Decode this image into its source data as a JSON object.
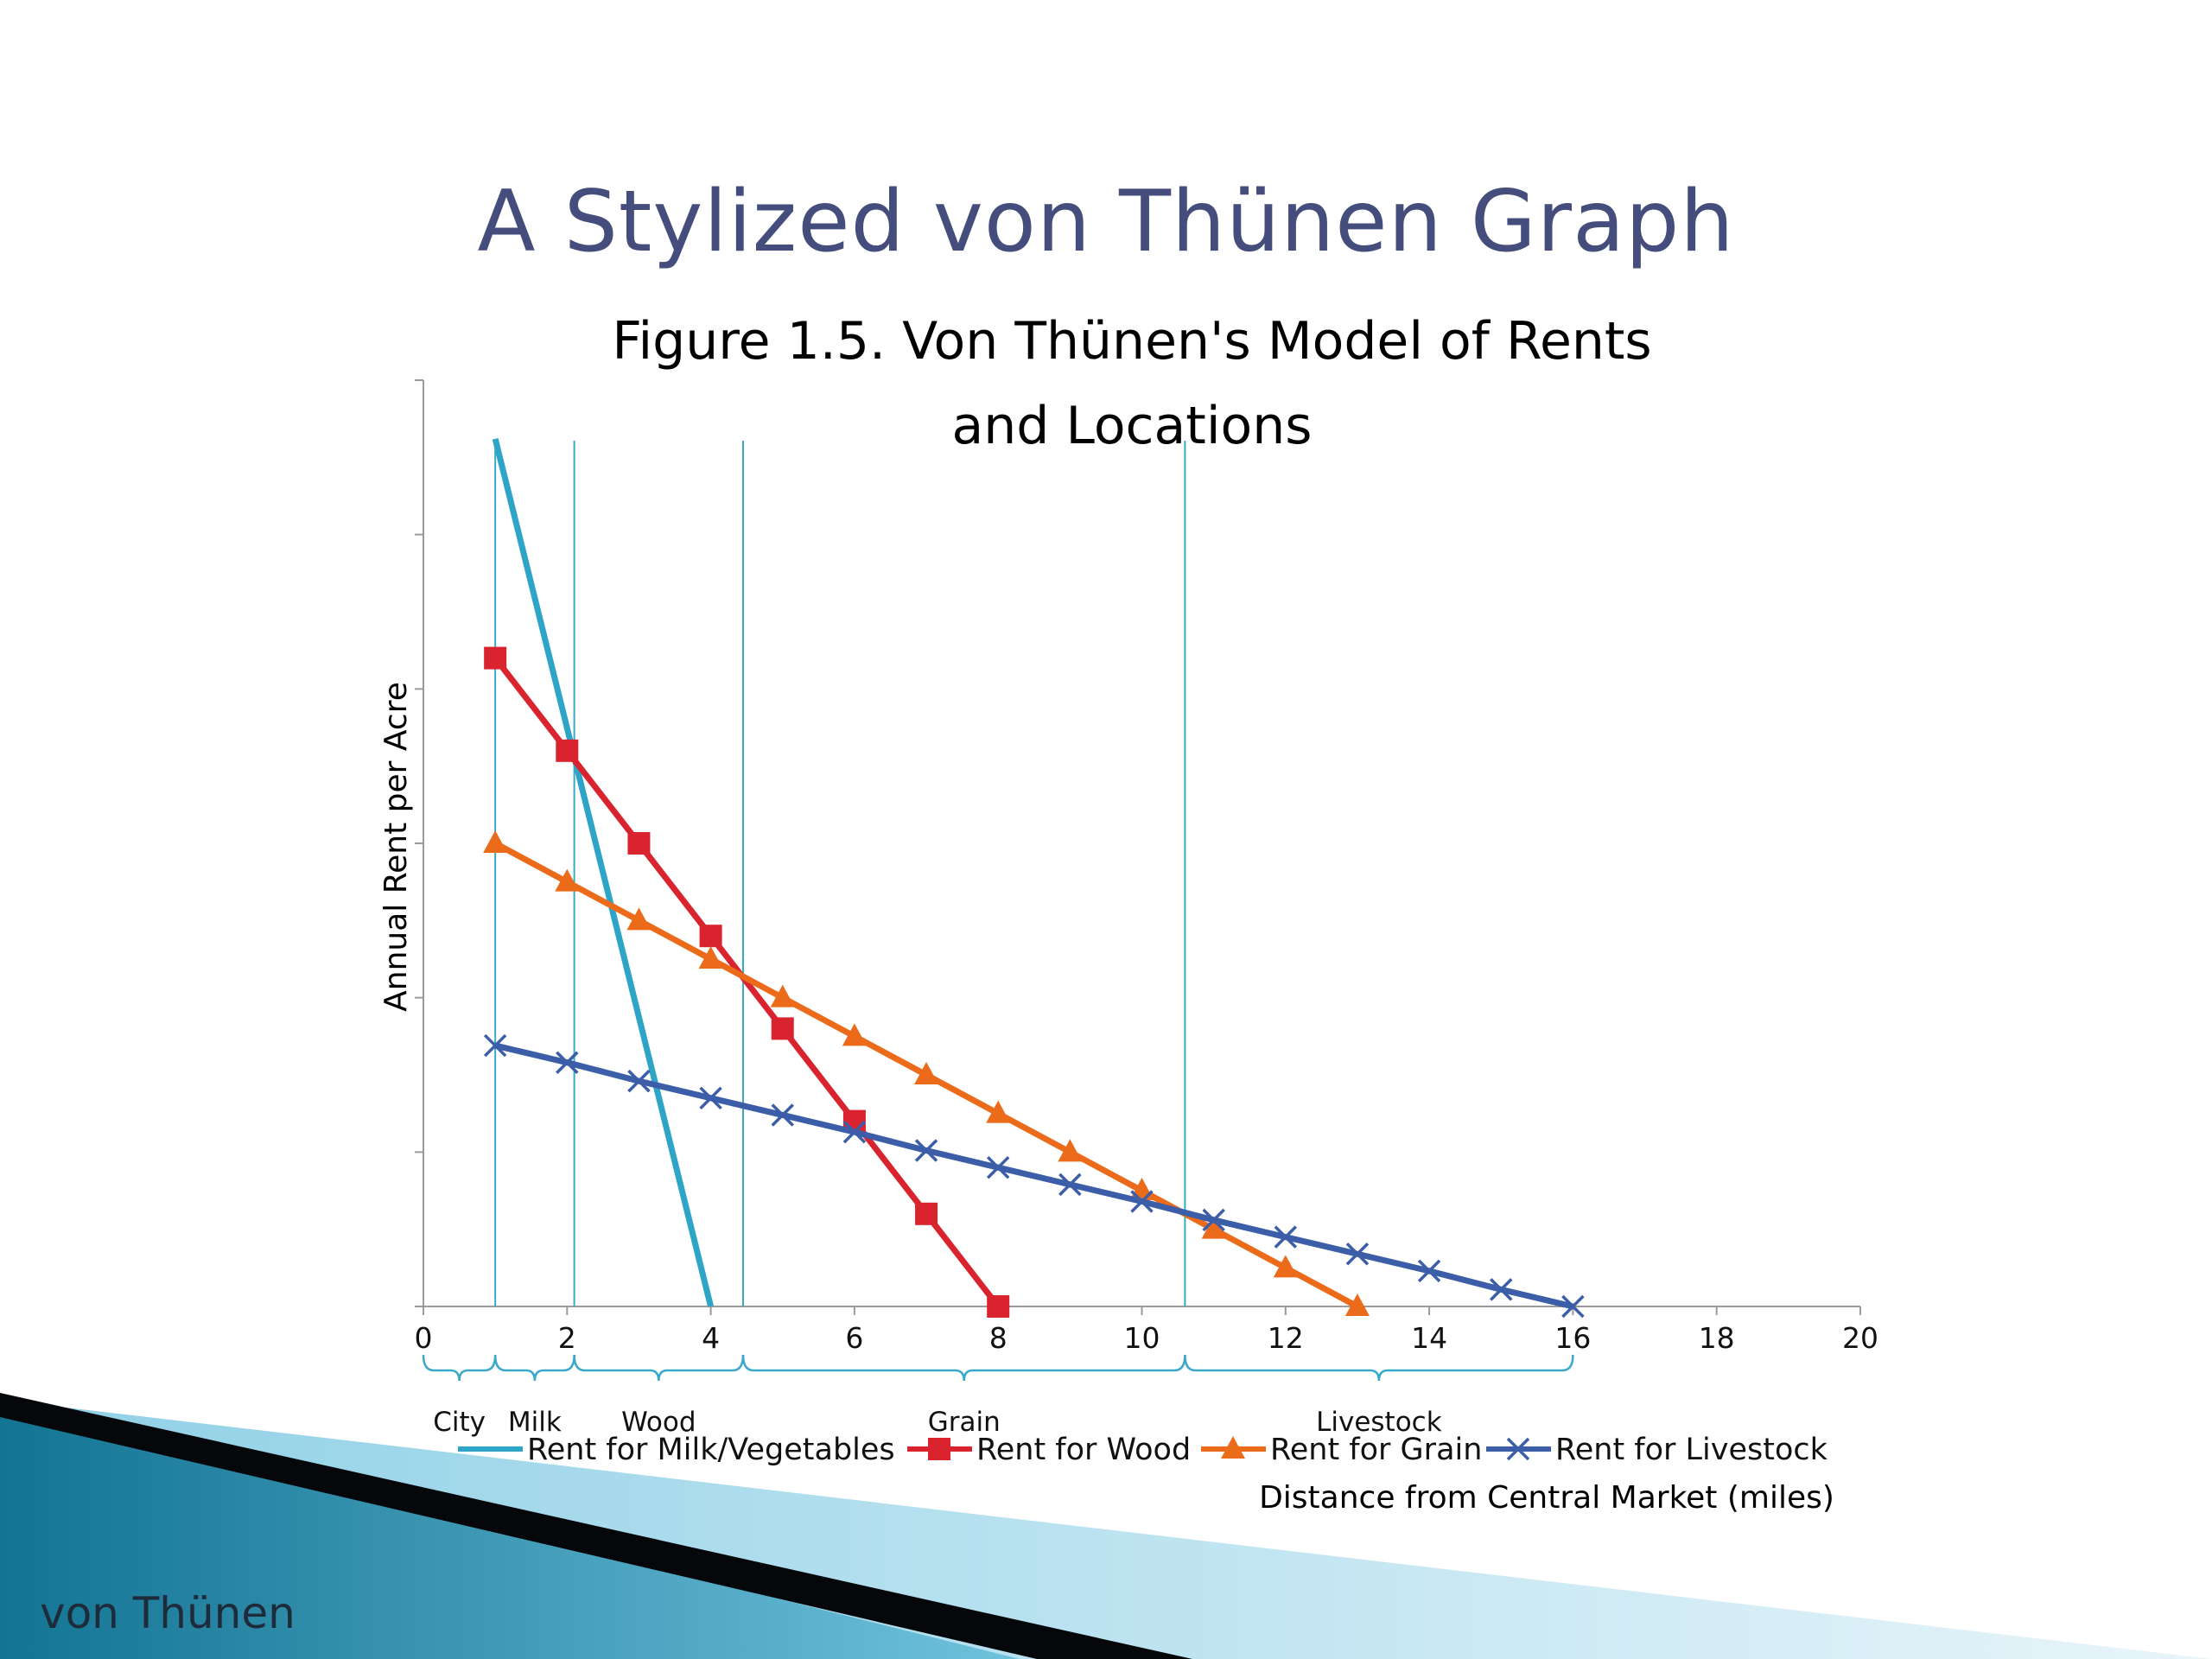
{
  "slide": {
    "title": "A Stylized von Thünen Graph",
    "footer": "von Thünen"
  },
  "colors": {
    "title": "#454d7c",
    "milk": "#2ea4c6",
    "wood": "#d9242f",
    "grain": "#ec6b1a",
    "livestock": "#3c5ea8",
    "zone_line": "#3aa9c9"
  },
  "chart_data": {
    "type": "line",
    "title_lines": [
      "Figure 1.5. Von Thünen's Model of Rents",
      "and Locations"
    ],
    "xlabel": "Distance from Central Market (miles)",
    "ylabel": "Annual Rent per Acre",
    "xlim": [
      0,
      20
    ],
    "ylim": [
      0,
      6
    ],
    "x_ticks": [
      0,
      2,
      4,
      6,
      8,
      10,
      12,
      14,
      16,
      18,
      20
    ],
    "y_ticks_labeled": false,
    "series": [
      {
        "name": "Rent for Milk/Vegetables",
        "color": "#2ea4c6",
        "marker": "none",
        "x": [
          1,
          4
        ],
        "y": [
          5.62,
          0
        ]
      },
      {
        "name": "Rent for Wood",
        "color": "#d9242f",
        "marker": "square",
        "x": [
          1,
          2,
          3,
          4,
          5,
          6,
          7,
          8
        ],
        "y": [
          4.2,
          3.6,
          3.0,
          2.4,
          1.8,
          1.2,
          0.6,
          0
        ]
      },
      {
        "name": "Rent for Grain",
        "color": "#ec6b1a",
        "marker": "triangle",
        "x": [
          1,
          2,
          3,
          4,
          5,
          6,
          7,
          8,
          9,
          10,
          11,
          12,
          13
        ],
        "y": [
          3.0,
          2.75,
          2.5,
          2.25,
          2.0,
          1.75,
          1.5,
          1.25,
          1.0,
          0.75,
          0.5,
          0.25,
          0
        ]
      },
      {
        "name": "Rent for Livestock",
        "color": "#3c5ea8",
        "marker": "x",
        "x": [
          1,
          2,
          3,
          4,
          5,
          6,
          7,
          8,
          9,
          10,
          11,
          12,
          13,
          14,
          15,
          16
        ],
        "y": [
          1.69,
          1.58,
          1.46,
          1.35,
          1.24,
          1.13,
          1.01,
          0.9,
          0.79,
          0.68,
          0.56,
          0.45,
          0.34,
          0.23,
          0.11,
          0
        ]
      }
    ],
    "zone_boundaries": [
      1,
      2.1,
      4.45,
      10.6
    ],
    "zones": [
      {
        "label": "City",
        "from": 0,
        "to": 1
      },
      {
        "label": "Milk",
        "from": 1,
        "to": 2.1
      },
      {
        "label": "Wood",
        "from": 2.1,
        "to": 4.45
      },
      {
        "label": "Grain",
        "from": 4.45,
        "to": 10.6
      },
      {
        "label": "Livestock",
        "from": 10.6,
        "to": 16
      }
    ],
    "legend_position": "bottom"
  }
}
